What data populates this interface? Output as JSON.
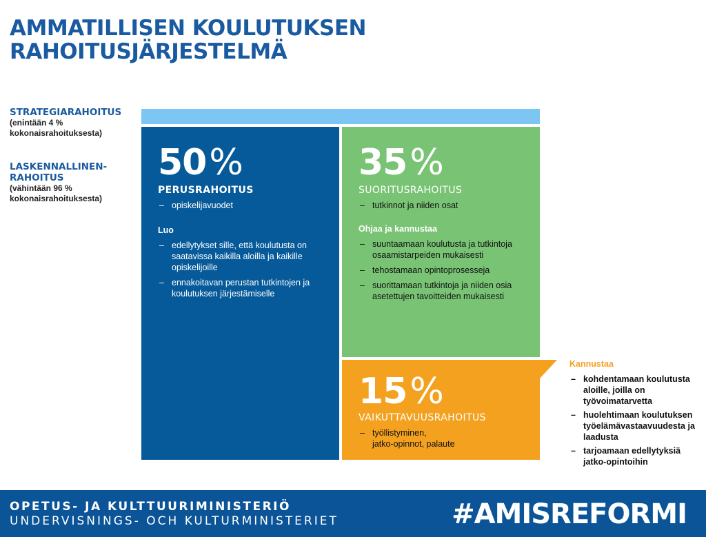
{
  "title": {
    "line1": "AMMATILLISEN KOULUTUKSEN",
    "line2": "RAHOITUSJÄRJESTELMÄ"
  },
  "side": {
    "strategy": {
      "heading": "STRATEGIARAHOITUS",
      "sub1": "(enintään 4 %",
      "sub2": "kokonaisrahoituksesta)"
    },
    "calculated": {
      "heading1": "LASKENNALLINEN-",
      "heading2": "RAHOITUS",
      "sub1": "(vähintään 96 %",
      "sub2": "kokonaisrahoituksesta)"
    }
  },
  "boxes": {
    "basic": {
      "number": "50",
      "unit": "%",
      "name": "PERUSRAHOITUS",
      "basis": "opiskelijavuodet",
      "section_title": "Luo",
      "items": [
        "edellytykset sille, että koulutusta on saatavissa kaikilla aloilla ja kaikille opiskelijoille",
        "ennakoitavan perustan tutkintojen ja koulutuksen järjestämiselle"
      ]
    },
    "performance": {
      "number": "35",
      "unit": "%",
      "name": "SUORITUSRAHOITUS",
      "basis": "tutkinnot ja niiden osat",
      "section_title": "Ohjaa ja kannustaa",
      "items": [
        "suuntaamaan koulutusta ja tutkintoja osaamistarpeiden mukaisesti",
        "tehostamaan opintoprosesseja",
        "suorittamaan tutkintoja ja niiden osia asetettujen tavoitteiden mukaisesti"
      ]
    },
    "effectiveness": {
      "number": "15",
      "unit": "%",
      "name": "VAIKUTTAVUUSRAHOITUS",
      "basis_line1": "työllistyminen,",
      "basis_line2": "jatko-opinnot, palaute"
    }
  },
  "callout": {
    "heading": "Kannustaa",
    "items": [
      "kohdentamaan koulutusta aloille, joilla on työvoimatarvetta",
      "huolehtimaan koulutuksen työelämävastaavuudesta ja laadusta",
      "tarjoamaan edellytyksiä jatko-opintoihin"
    ]
  },
  "footer": {
    "ministry_fi": "OPETUS- JA KULTTUURIMINISTERIÖ",
    "ministry_sv": "UNDERVISNINGS- OCH KULTURMINISTERIET",
    "hashtag": "#AMISREFORMI"
  },
  "colors": {
    "title_blue": "#1a5aa0",
    "strategy_bar": "#7dc6f3",
    "basic_box": "#065a9a",
    "performance_box": "#79c375",
    "effectiveness_box": "#f4a11f",
    "footer": "#0b5497"
  }
}
